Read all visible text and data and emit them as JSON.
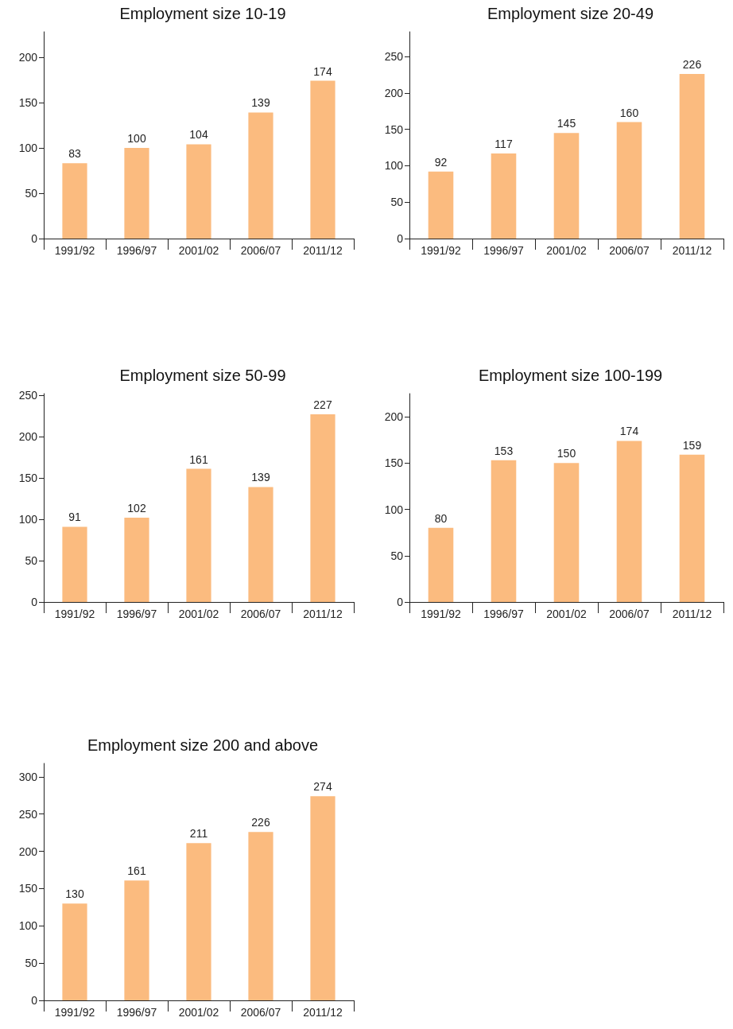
{
  "chart_data": [
    {
      "type": "bar",
      "title": "Employment size 10-19",
      "categories": [
        "1991/92",
        "1996/97",
        "2001/02",
        "2006/07",
        "2011/12"
      ],
      "values": [
        83,
        100,
        104,
        139,
        174
      ],
      "color": "#fbbb7f",
      "ylim": [
        0,
        228
      ],
      "yticks": [
        0,
        50,
        100,
        150,
        200
      ],
      "data_labels": true
    },
    {
      "type": "bar",
      "title": "Employment size 20-49",
      "categories": [
        "1991/92",
        "1996/97",
        "2001/02",
        "2006/07",
        "2011/12"
      ],
      "values": [
        92,
        117,
        145,
        160,
        226
      ],
      "color": "#fbbb7f",
      "ylim": [
        0,
        284
      ],
      "yticks": [
        0,
        50,
        100,
        150,
        200,
        250
      ],
      "data_labels": true
    },
    {
      "type": "bar",
      "title": "Employment size 50-99",
      "categories": [
        "1991/92",
        "1996/97",
        "2001/02",
        "2006/07",
        "2011/12"
      ],
      "values": [
        91,
        102,
        161,
        139,
        227
      ],
      "color": "#fbbb7f",
      "ylim": [
        0,
        252
      ],
      "yticks": [
        0,
        50,
        100,
        150,
        200,
        250
      ],
      "data_labels": true
    },
    {
      "type": "bar",
      "title": "Employment size 100-199",
      "categories": [
        "1991/92",
        "1996/97",
        "2001/02",
        "2006/07",
        "2011/12"
      ],
      "values": [
        80,
        153,
        150,
        174,
        159
      ],
      "color": "#fbbb7f",
      "ylim": [
        0,
        225
      ],
      "yticks": [
        0,
        50,
        100,
        150,
        200
      ],
      "data_labels": true
    },
    {
      "type": "bar",
      "title": "Employment size 200 and above",
      "categories": [
        "1991/92",
        "1996/97",
        "2001/02",
        "2006/07",
        "2011/12"
      ],
      "values": [
        130,
        161,
        211,
        226,
        274
      ],
      "color": "#fbbb7f",
      "ylim": [
        0,
        318
      ],
      "yticks": [
        0,
        50,
        100,
        150,
        200,
        250,
        300
      ],
      "data_labels": true
    }
  ]
}
